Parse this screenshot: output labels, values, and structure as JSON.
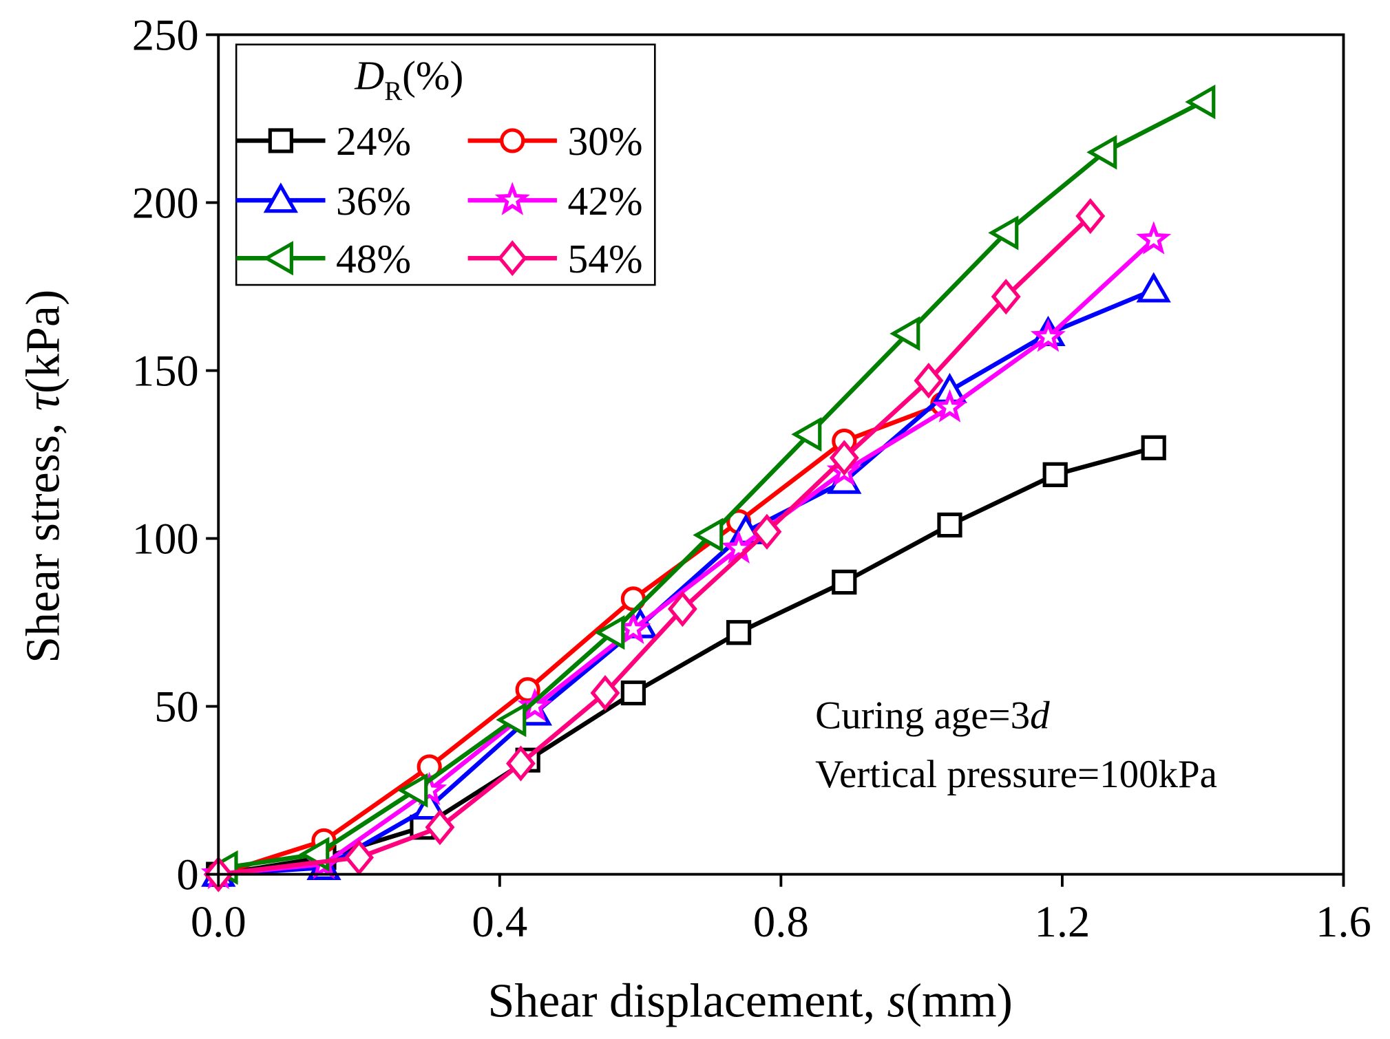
{
  "chart_data": {
    "type": "line",
    "title": "",
    "xlabel": "Shear displacement, s(mm)",
    "xlabel_parts": {
      "pre": "Shear displacement, ",
      "var": "s",
      "post": "(mm)"
    },
    "ylabel": "Shear stress, τ (kPa)",
    "ylabel_parts": {
      "pre": "Shear stress, ",
      "var": "τ",
      "post": "(kPa)"
    },
    "xlim": [
      0,
      1.6
    ],
    "ylim": [
      0,
      250
    ],
    "xticks": [
      "0.0",
      "0.4",
      "0.8",
      "1.2",
      "1.6"
    ],
    "xtick_values": [
      0,
      0.4,
      0.8,
      1.2,
      1.6
    ],
    "yticks": [
      "0",
      "50",
      "100",
      "150",
      "200",
      "250"
    ],
    "ytick_values": [
      0,
      50,
      100,
      150,
      200,
      250
    ],
    "grid": false,
    "legend": {
      "placement": "top-left",
      "title_var": "D",
      "title_sub": "R",
      "title_post": "(%)"
    },
    "annotations": [
      {
        "pre": "Curing age=3",
        "var": "d"
      },
      {
        "pre": "Vertical pressure=100kPa",
        "var": ""
      }
    ],
    "series": [
      {
        "name": "24%",
        "color": "#000000",
        "marker": "square",
        "x": [
          0,
          0.15,
          0.29,
          0.44,
          0.59,
          0.74,
          0.89,
          1.04,
          1.19,
          1.33
        ],
        "y": [
          0,
          5,
          14,
          34,
          54,
          72,
          87,
          104,
          119,
          127
        ]
      },
      {
        "name": "30%",
        "color": "#ff0000",
        "marker": "circle",
        "x": [
          0,
          0.15,
          0.3,
          0.44,
          0.59,
          0.74,
          0.89,
          1.03
        ],
        "y": [
          0,
          10,
          32,
          55,
          82,
          105,
          129,
          140
        ]
      },
      {
        "name": "36%",
        "color": "#0000ff",
        "marker": "triangle-up",
        "x": [
          0,
          0.15,
          0.3,
          0.45,
          0.6,
          0.75,
          0.89,
          1.04,
          1.18,
          1.33
        ],
        "y": [
          0,
          2,
          20,
          48,
          74,
          102,
          117,
          144,
          161,
          174
        ]
      },
      {
        "name": "42%",
        "color": "#ff00ff",
        "marker": "star",
        "x": [
          0,
          0.15,
          0.3,
          0.45,
          0.59,
          0.74,
          0.89,
          1.04,
          1.18,
          1.33
        ],
        "y": [
          0,
          3,
          25,
          50,
          73,
          97,
          120,
          139,
          160,
          189
        ]
      },
      {
        "name": "48%",
        "color": "#007f00",
        "marker": "triangle-left",
        "x": [
          0.01,
          0.14,
          0.28,
          0.42,
          0.56,
          0.7,
          0.84,
          0.98,
          1.12,
          1.26,
          1.4
        ],
        "y": [
          2,
          6,
          25,
          46,
          72,
          101,
          131,
          161,
          191,
          215,
          230
        ]
      },
      {
        "name": "54%",
        "color": "#ff007f",
        "marker": "diamond",
        "x": [
          0,
          0.2,
          0.315,
          0.43,
          0.55,
          0.66,
          0.78,
          0.89,
          1.01,
          1.12,
          1.24
        ],
        "y": [
          0,
          5,
          14,
          33,
          54,
          79,
          102,
          124,
          147,
          172,
          196
        ]
      }
    ]
  }
}
